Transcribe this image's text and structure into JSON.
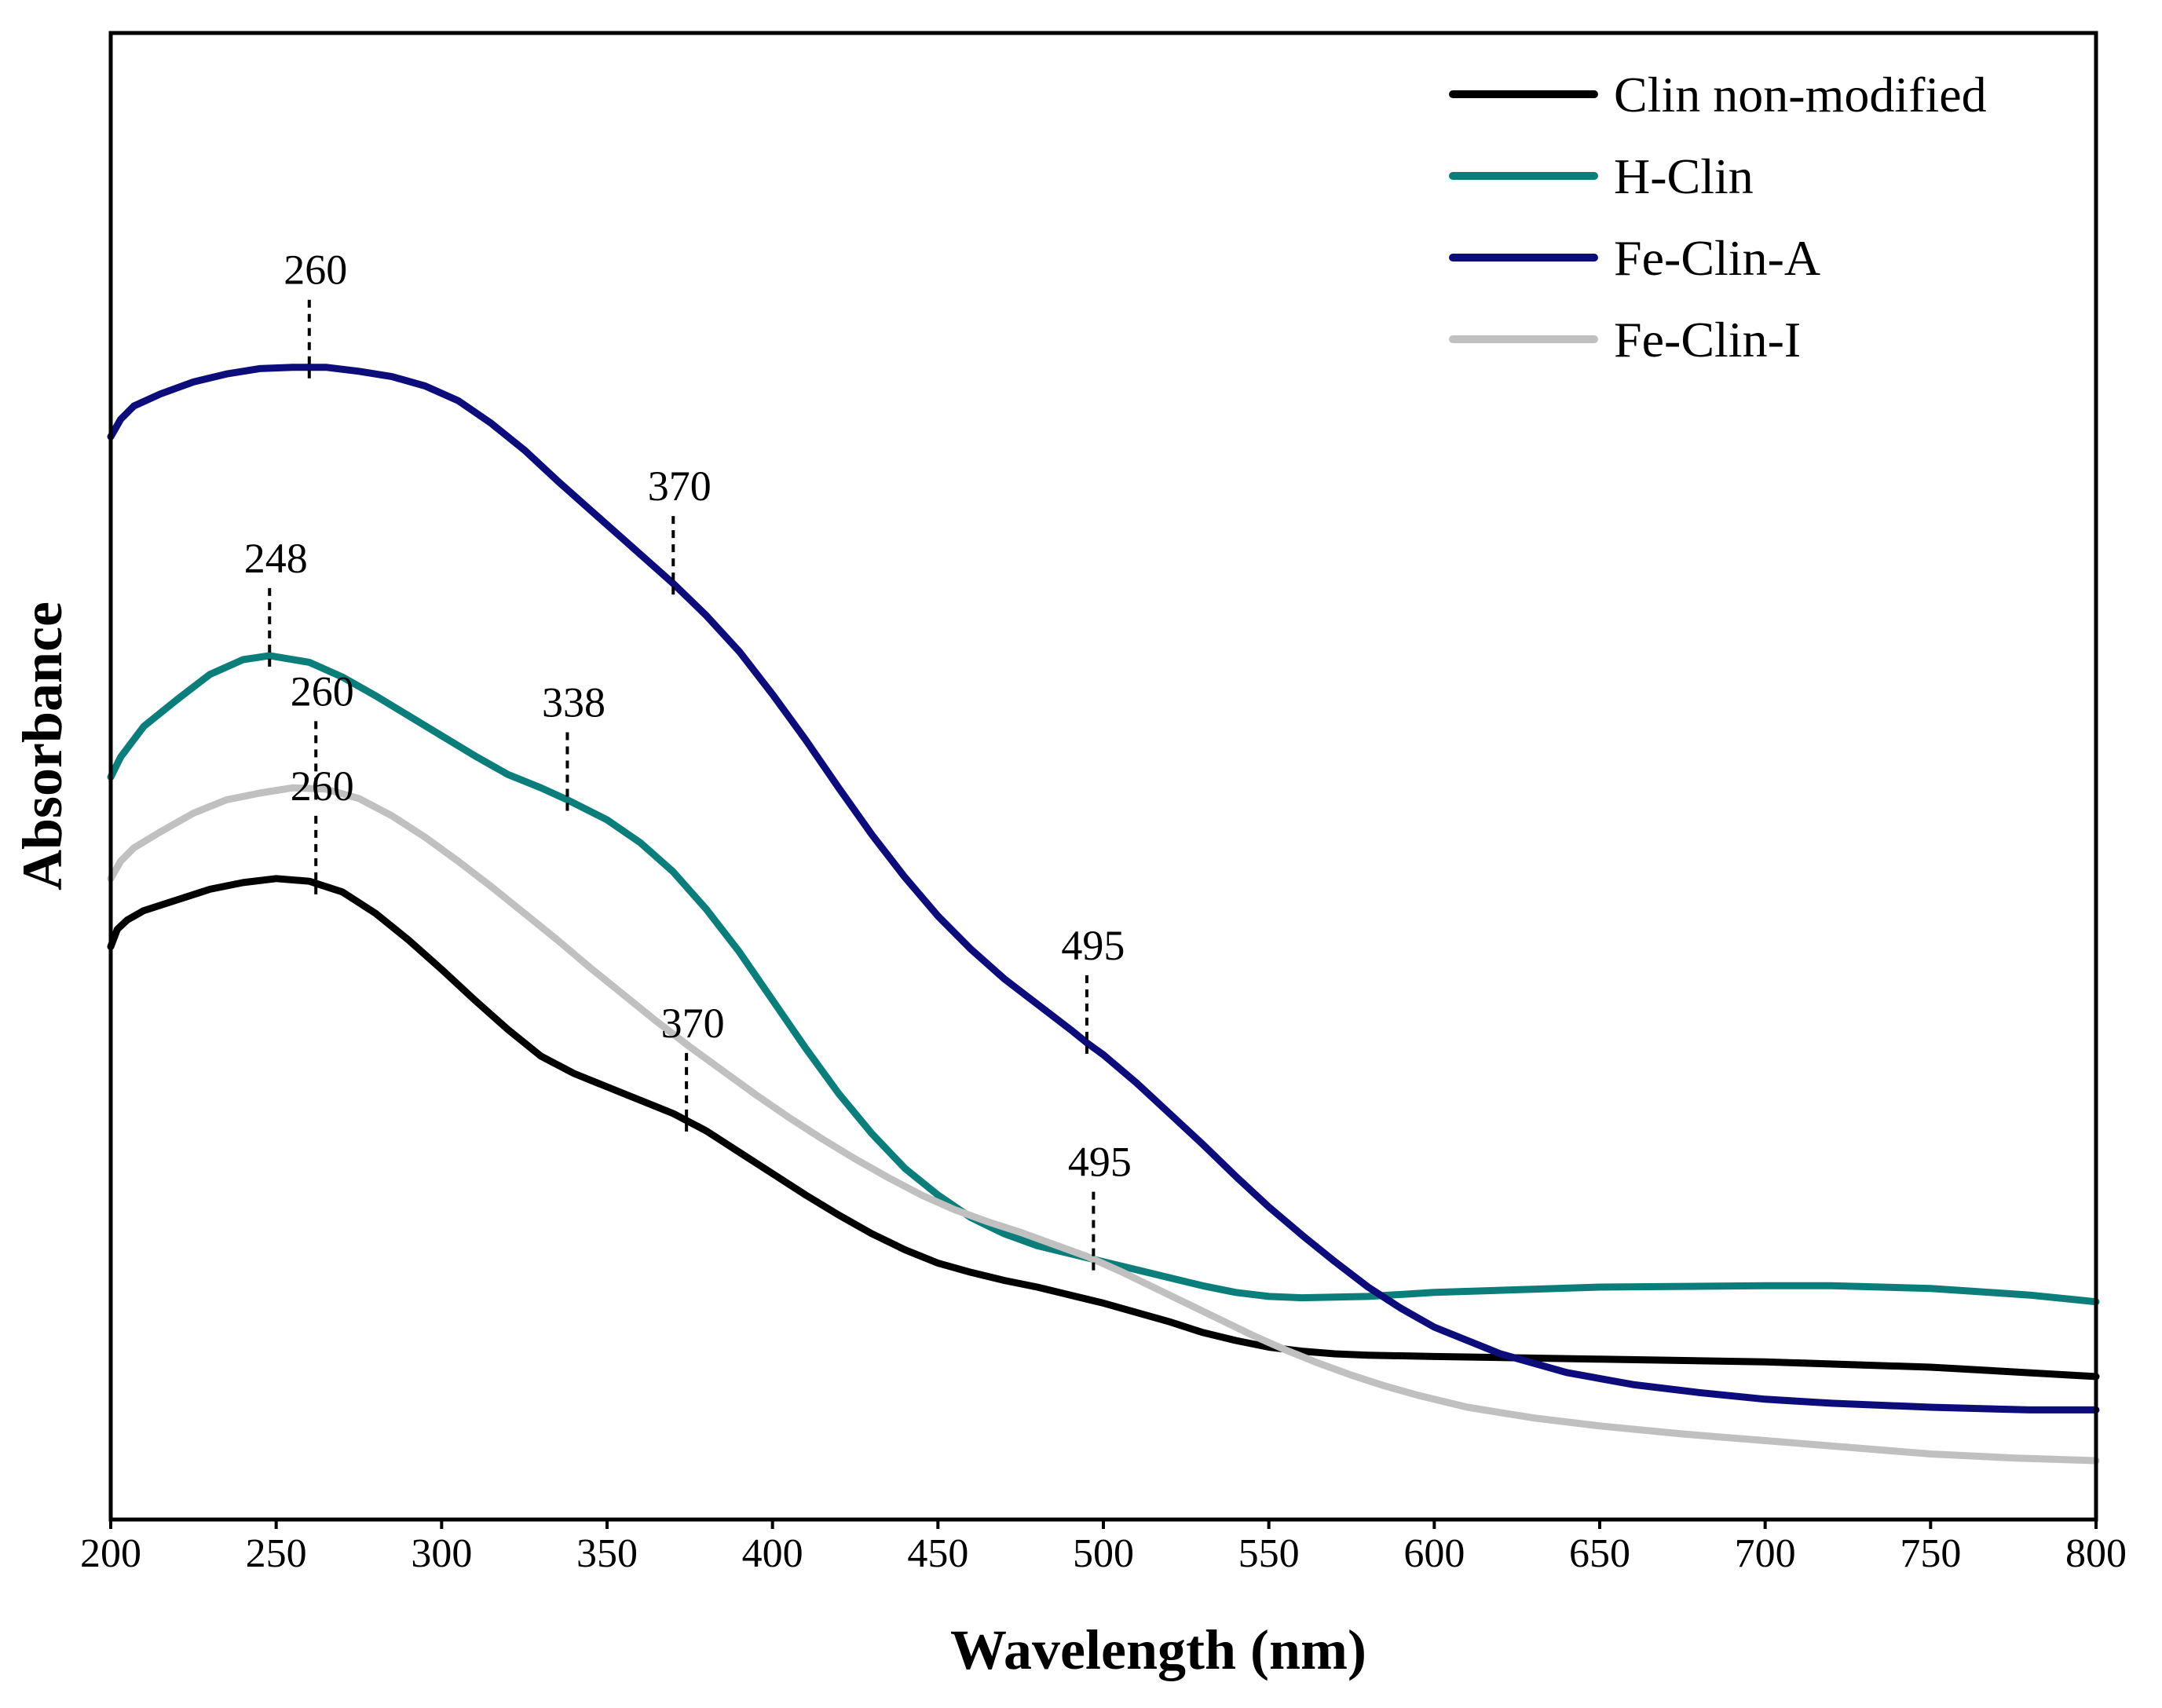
{
  "chart_data": {
    "type": "line",
    "title": "",
    "xlabel": "Wavelength (nm)",
    "ylabel": "Absorbance",
    "xlim": [
      200,
      800
    ],
    "ylim": [
      0,
      1
    ],
    "xticks": [
      200,
      250,
      300,
      350,
      400,
      450,
      500,
      550,
      600,
      650,
      700,
      750,
      800
    ],
    "grid": false,
    "legend_position": "top-right",
    "series": [
      {
        "name": "Clin non-modified",
        "color": "#000000",
        "points": [
          [
            200,
            0.385
          ],
          [
            202,
            0.398
          ],
          [
            205,
            0.405
          ],
          [
            210,
            0.412
          ],
          [
            220,
            0.42
          ],
          [
            230,
            0.428
          ],
          [
            240,
            0.433
          ],
          [
            250,
            0.436
          ],
          [
            260,
            0.434
          ],
          [
            270,
            0.426
          ],
          [
            280,
            0.41
          ],
          [
            290,
            0.39
          ],
          [
            300,
            0.368
          ],
          [
            310,
            0.345
          ],
          [
            320,
            0.323
          ],
          [
            330,
            0.303
          ],
          [
            340,
            0.29
          ],
          [
            350,
            0.28
          ],
          [
            360,
            0.27
          ],
          [
            370,
            0.26
          ],
          [
            380,
            0.247
          ],
          [
            390,
            0.231
          ],
          [
            400,
            0.215
          ],
          [
            410,
            0.199
          ],
          [
            420,
            0.184
          ],
          [
            430,
            0.17
          ],
          [
            440,
            0.158
          ],
          [
            450,
            0.148
          ],
          [
            460,
            0.141
          ],
          [
            470,
            0.135
          ],
          [
            480,
            0.13
          ],
          [
            490,
            0.124
          ],
          [
            500,
            0.118
          ],
          [
            510,
            0.111
          ],
          [
            520,
            0.104
          ],
          [
            530,
            0.096
          ],
          [
            540,
            0.09
          ],
          [
            550,
            0.085
          ],
          [
            560,
            0.082
          ],
          [
            570,
            0.08
          ],
          [
            580,
            0.079
          ],
          [
            600,
            0.078
          ],
          [
            650,
            0.076
          ],
          [
            700,
            0.074
          ],
          [
            750,
            0.07
          ],
          [
            800,
            0.063
          ]
        ]
      },
      {
        "name": "H-Clin",
        "color": "#0b7d7b",
        "points": [
          [
            200,
            0.512
          ],
          [
            203,
            0.527
          ],
          [
            210,
            0.55
          ],
          [
            220,
            0.57
          ],
          [
            230,
            0.589
          ],
          [
            240,
            0.6
          ],
          [
            248,
            0.603
          ],
          [
            260,
            0.598
          ],
          [
            270,
            0.587
          ],
          [
            280,
            0.573
          ],
          [
            290,
            0.558
          ],
          [
            300,
            0.543
          ],
          [
            310,
            0.528
          ],
          [
            320,
            0.514
          ],
          [
            330,
            0.504
          ],
          [
            338,
            0.495
          ],
          [
            350,
            0.48
          ],
          [
            360,
            0.463
          ],
          [
            370,
            0.441
          ],
          [
            380,
            0.413
          ],
          [
            390,
            0.381
          ],
          [
            400,
            0.345
          ],
          [
            410,
            0.309
          ],
          [
            420,
            0.275
          ],
          [
            430,
            0.245
          ],
          [
            440,
            0.219
          ],
          [
            450,
            0.199
          ],
          [
            460,
            0.182
          ],
          [
            470,
            0.17
          ],
          [
            480,
            0.161
          ],
          [
            490,
            0.155
          ],
          [
            500,
            0.149
          ],
          [
            510,
            0.143
          ],
          [
            520,
            0.137
          ],
          [
            530,
            0.131
          ],
          [
            540,
            0.126
          ],
          [
            550,
            0.123
          ],
          [
            560,
            0.122
          ],
          [
            580,
            0.123
          ],
          [
            600,
            0.126
          ],
          [
            650,
            0.13
          ],
          [
            700,
            0.131
          ],
          [
            720,
            0.131
          ],
          [
            750,
            0.129
          ],
          [
            780,
            0.124
          ],
          [
            800,
            0.119
          ]
        ]
      },
      {
        "name": "Fe-Clin-A",
        "color": "#0c0c7a",
        "points": [
          [
            200,
            0.767
          ],
          [
            203,
            0.78
          ],
          [
            207,
            0.79
          ],
          [
            215,
            0.799
          ],
          [
            225,
            0.808
          ],
          [
            235,
            0.814
          ],
          [
            245,
            0.818
          ],
          [
            255,
            0.819
          ],
          [
            265,
            0.819
          ],
          [
            275,
            0.816
          ],
          [
            285,
            0.812
          ],
          [
            295,
            0.805
          ],
          [
            305,
            0.794
          ],
          [
            315,
            0.777
          ],
          [
            325,
            0.757
          ],
          [
            335,
            0.734
          ],
          [
            345,
            0.712
          ],
          [
            355,
            0.69
          ],
          [
            365,
            0.668
          ],
          [
            370,
            0.657
          ],
          [
            380,
            0.633
          ],
          [
            390,
            0.606
          ],
          [
            400,
            0.574
          ],
          [
            410,
            0.54
          ],
          [
            420,
            0.504
          ],
          [
            430,
            0.469
          ],
          [
            440,
            0.437
          ],
          [
            450,
            0.408
          ],
          [
            460,
            0.383
          ],
          [
            470,
            0.361
          ],
          [
            480,
            0.342
          ],
          [
            490,
            0.323
          ],
          [
            495,
            0.313
          ],
          [
            500,
            0.304
          ],
          [
            510,
            0.283
          ],
          [
            520,
            0.26
          ],
          [
            530,
            0.237
          ],
          [
            540,
            0.213
          ],
          [
            550,
            0.19
          ],
          [
            560,
            0.169
          ],
          [
            570,
            0.149
          ],
          [
            580,
            0.13
          ],
          [
            590,
            0.114
          ],
          [
            600,
            0.1
          ],
          [
            620,
            0.08
          ],
          [
            640,
            0.066
          ],
          [
            660,
            0.057
          ],
          [
            680,
            0.051
          ],
          [
            700,
            0.046
          ],
          [
            720,
            0.043
          ],
          [
            750,
            0.04
          ],
          [
            780,
            0.038
          ],
          [
            800,
            0.038
          ]
        ]
      },
      {
        "name": "Fe-Clin-I",
        "color": "#c0c0c0",
        "points": [
          [
            200,
            0.436
          ],
          [
            203,
            0.449
          ],
          [
            207,
            0.459
          ],
          [
            215,
            0.471
          ],
          [
            225,
            0.485
          ],
          [
            235,
            0.495
          ],
          [
            245,
            0.5
          ],
          [
            255,
            0.504
          ],
          [
            265,
            0.503
          ],
          [
            275,
            0.496
          ],
          [
            285,
            0.483
          ],
          [
            295,
            0.467
          ],
          [
            305,
            0.449
          ],
          [
            315,
            0.43
          ],
          [
            325,
            0.41
          ],
          [
            335,
            0.39
          ],
          [
            345,
            0.369
          ],
          [
            355,
            0.349
          ],
          [
            365,
            0.329
          ],
          [
            375,
            0.31
          ],
          [
            385,
            0.292
          ],
          [
            395,
            0.274
          ],
          [
            405,
            0.257
          ],
          [
            415,
            0.241
          ],
          [
            425,
            0.226
          ],
          [
            435,
            0.212
          ],
          [
            445,
            0.199
          ],
          [
            455,
            0.188
          ],
          [
            465,
            0.179
          ],
          [
            475,
            0.171
          ],
          [
            485,
            0.162
          ],
          [
            495,
            0.153
          ],
          [
            505,
            0.142
          ],
          [
            515,
            0.13
          ],
          [
            525,
            0.118
          ],
          [
            535,
            0.106
          ],
          [
            545,
            0.094
          ],
          [
            555,
            0.083
          ],
          [
            565,
            0.073
          ],
          [
            575,
            0.064
          ],
          [
            585,
            0.056
          ],
          [
            595,
            0.049
          ],
          [
            610,
            0.04
          ],
          [
            630,
            0.032
          ],
          [
            650,
            0.026
          ],
          [
            675,
            0.02
          ],
          [
            700,
            0.015
          ],
          [
            725,
            0.01
          ],
          [
            750,
            0.005
          ],
          [
            775,
            0.002
          ],
          [
            800,
            0.0
          ]
        ]
      }
    ],
    "annotations": [
      {
        "label": "260",
        "series": "Fe-Clin-A",
        "x": 260
      },
      {
        "label": "370",
        "series": "Fe-Clin-A",
        "x": 370
      },
      {
        "label": "495",
        "series": "Fe-Clin-A",
        "x": 495
      },
      {
        "label": "248",
        "series": "H-Clin",
        "x": 248
      },
      {
        "label": "338",
        "series": "H-Clin",
        "x": 338
      },
      {
        "label": "260",
        "series": "Fe-Clin-I",
        "x": 262
      },
      {
        "label": "260",
        "series": "Clin non-modified",
        "x": 262
      },
      {
        "label": "370",
        "series": "Clin non-modified",
        "x": 374
      },
      {
        "label": "495",
        "series": "H-Clin",
        "x": 497
      }
    ]
  }
}
